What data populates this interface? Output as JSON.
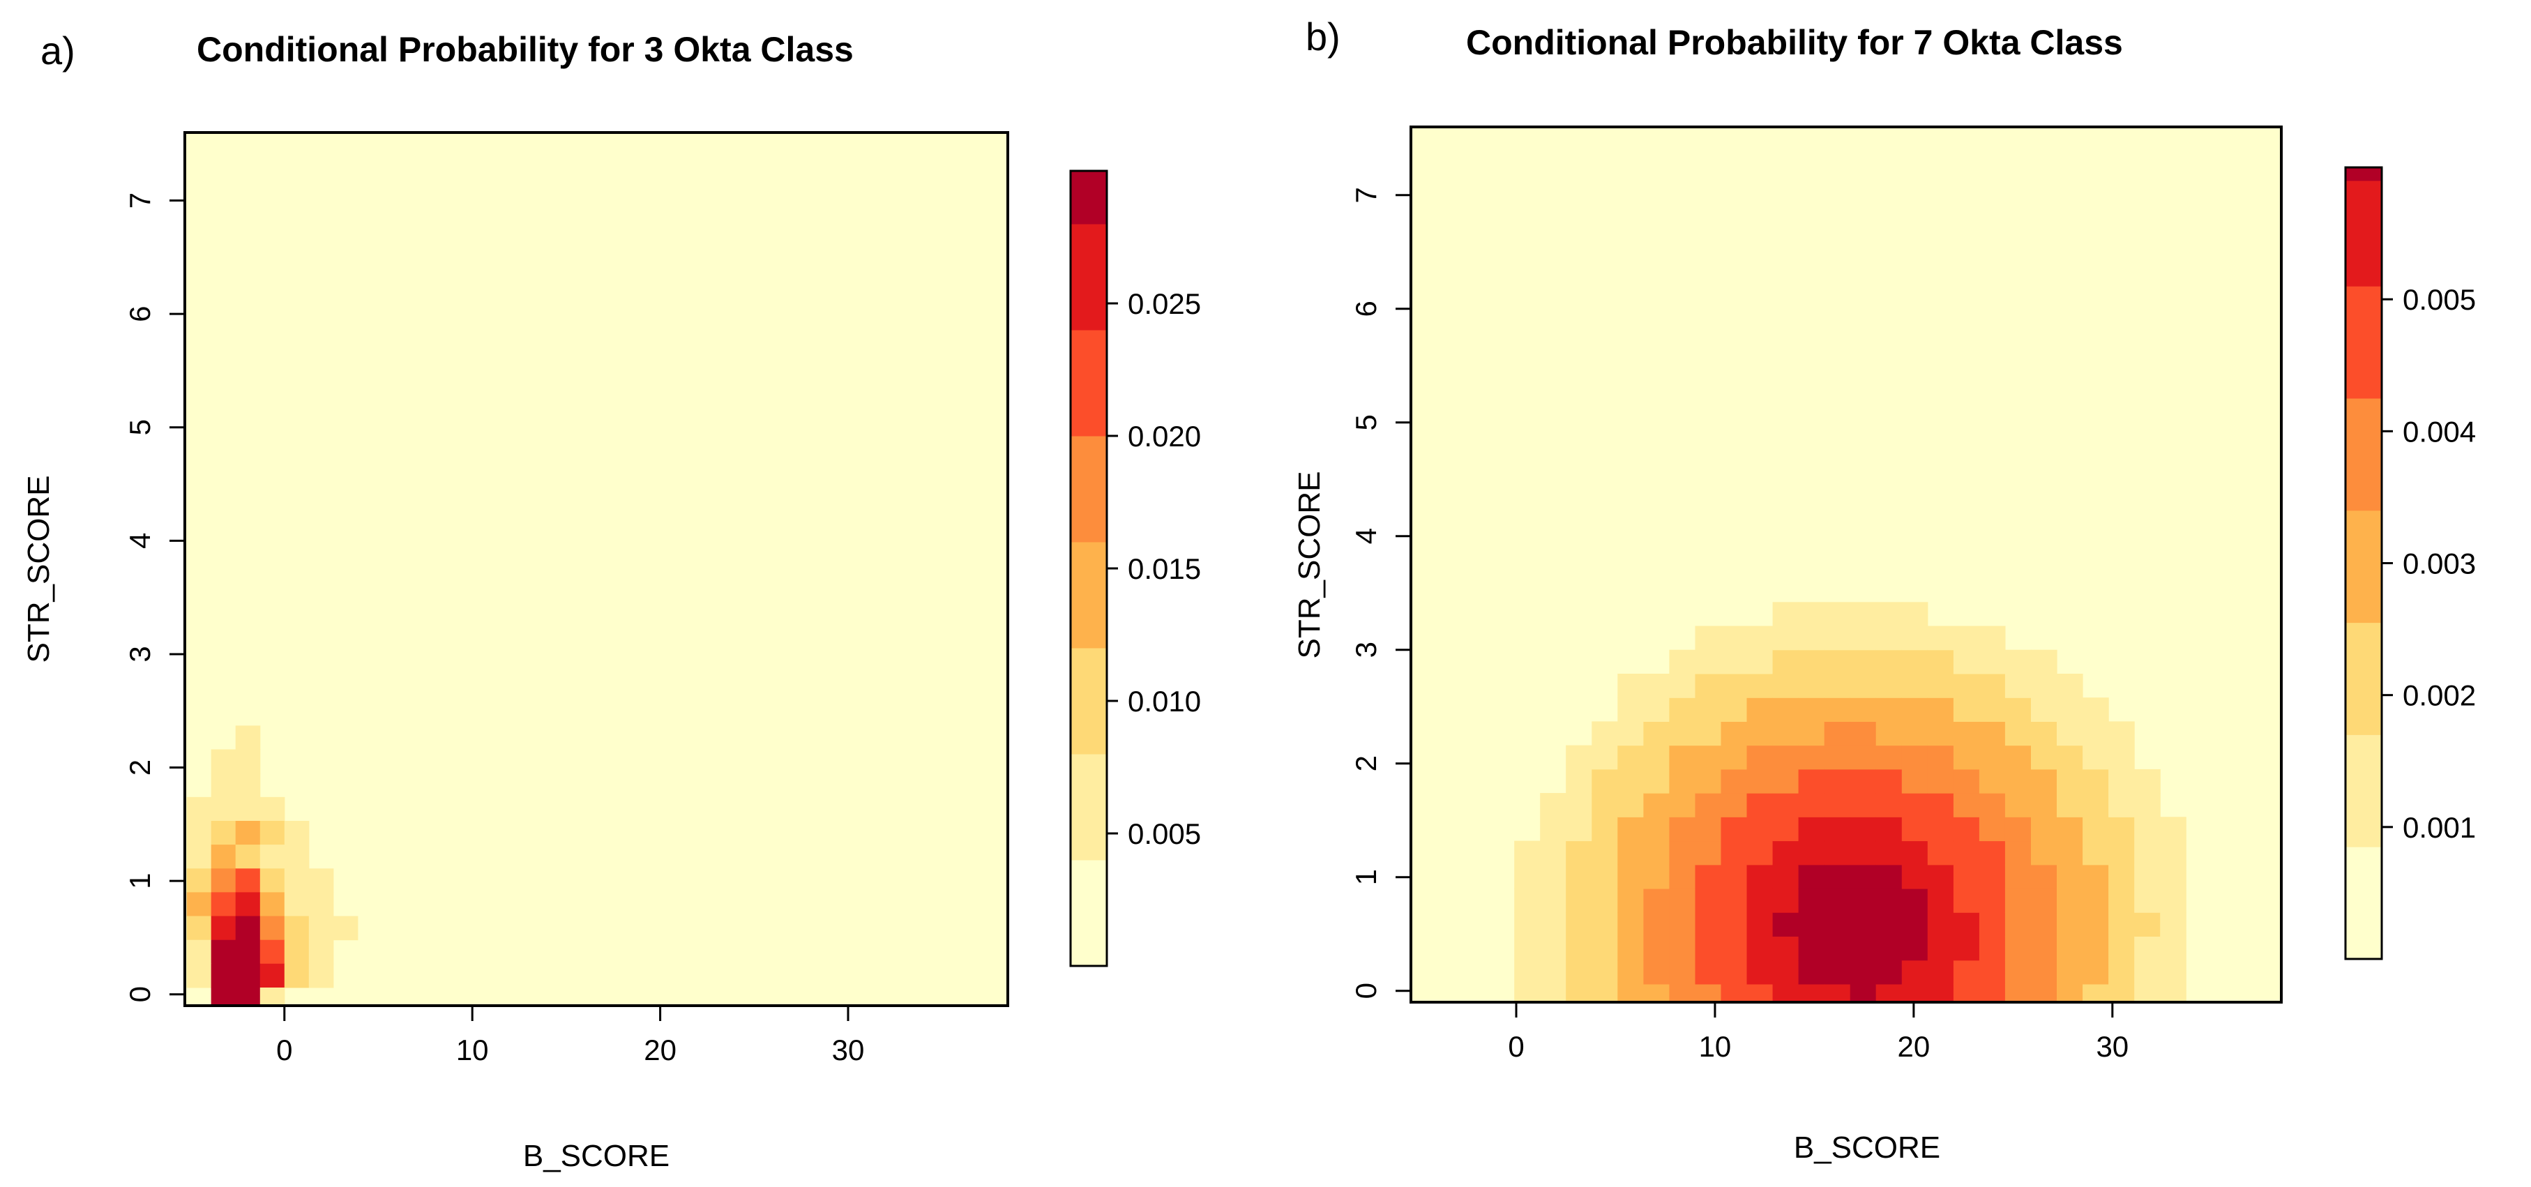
{
  "palette": [
    "#ffffcc",
    "#ffeda0",
    "#fed976",
    "#feb24c",
    "#fd8d3c",
    "#fc4e2a",
    "#e31a1c",
    "#b10026"
  ],
  "chart_data": [
    {
      "type": "heatmap",
      "panel_label": "a)",
      "title": "Conditional Probability for 3 Okta Class",
      "xlabel": "B_SCORE",
      "ylabel": "STR_SCORE",
      "xlim": [
        -5.3,
        38.5
      ],
      "ylim": [
        -0.1,
        7.6
      ],
      "x_ticks": [
        0,
        10,
        20,
        30
      ],
      "y_ticks": [
        0,
        1,
        2,
        3,
        4,
        5,
        6,
        7
      ],
      "cell": {
        "dx": 1.3,
        "dy": 0.21
      },
      "levels": [
        0,
        0.004,
        0.008,
        0.012,
        0.016,
        0.02,
        0.024,
        0.028,
        0.03
      ],
      "colorbar_ticks": [
        0.005,
        0.01,
        0.015,
        0.02,
        0.025
      ],
      "colorbar_tick_labels": [
        "0.005",
        "0.010",
        "0.015",
        "0.020",
        "0.025"
      ],
      "hot_cells": [
        [
          -3.9,
          1.95,
          1
        ],
        [
          -3.9,
          1.74,
          1
        ],
        [
          -2.6,
          2.16,
          1
        ],
        [
          -2.6,
          1.95,
          1
        ],
        [
          -2.6,
          1.74,
          1
        ],
        [
          -5.2,
          1.53,
          1
        ],
        [
          -3.9,
          1.53,
          1
        ],
        [
          -2.6,
          1.53,
          1
        ],
        [
          -1.3,
          1.53,
          1
        ],
        [
          -5.2,
          1.32,
          1
        ],
        [
          -3.9,
          1.32,
          2
        ],
        [
          -2.6,
          1.32,
          3
        ],
        [
          -1.3,
          1.32,
          2
        ],
        [
          0.0,
          1.32,
          1
        ],
        [
          -5.2,
          1.11,
          1
        ],
        [
          -3.9,
          1.11,
          3
        ],
        [
          -2.6,
          1.11,
          2
        ],
        [
          -1.3,
          1.11,
          1
        ],
        [
          0.0,
          1.11,
          1
        ],
        [
          -5.2,
          0.9,
          2
        ],
        [
          -3.9,
          0.9,
          4
        ],
        [
          -2.6,
          0.9,
          5
        ],
        [
          -1.3,
          0.9,
          2
        ],
        [
          0.0,
          0.9,
          1
        ],
        [
          1.3,
          0.9,
          1
        ],
        [
          -5.2,
          0.69,
          3
        ],
        [
          -3.9,
          0.69,
          5
        ],
        [
          -2.6,
          0.69,
          6
        ],
        [
          -1.3,
          0.69,
          3
        ],
        [
          0.0,
          0.69,
          1
        ],
        [
          1.3,
          0.69,
          1
        ],
        [
          -5.2,
          0.48,
          2
        ],
        [
          -3.9,
          0.48,
          6
        ],
        [
          -2.6,
          0.48,
          7
        ],
        [
          -1.3,
          0.48,
          4
        ],
        [
          0.0,
          0.48,
          2
        ],
        [
          1.3,
          0.48,
          1
        ],
        [
          2.6,
          0.48,
          1
        ],
        [
          -5.2,
          0.27,
          1
        ],
        [
          -3.9,
          0.27,
          7
        ],
        [
          -2.6,
          0.27,
          7
        ],
        [
          -1.3,
          0.27,
          5
        ],
        [
          0.0,
          0.27,
          2
        ],
        [
          1.3,
          0.27,
          1
        ],
        [
          -5.2,
          0.06,
          1
        ],
        [
          -3.9,
          0.06,
          7
        ],
        [
          -2.6,
          0.06,
          7
        ],
        [
          -1.3,
          0.06,
          6
        ],
        [
          0.0,
          0.06,
          2
        ],
        [
          1.3,
          0.06,
          1
        ],
        [
          -3.9,
          -0.15,
          7
        ],
        [
          -2.6,
          -0.15,
          7
        ],
        [
          -1.3,
          -0.15,
          1
        ]
      ]
    },
    {
      "type": "heatmap",
      "panel_label": "b)",
      "title": "Conditional Probability for 7 Okta Class",
      "xlabel": "B_SCORE",
      "ylabel": "STR_SCORE",
      "xlim": [
        -5.3,
        38.5
      ],
      "ylim": [
        -0.1,
        7.6
      ],
      "x_ticks": [
        0,
        10,
        20,
        30
      ],
      "y_ticks": [
        0,
        1,
        2,
        3,
        4,
        5,
        6,
        7
      ],
      "cell": {
        "dx": 1.3,
        "dy": 0.21
      },
      "levels": [
        0,
        0.00085,
        0.0017,
        0.00255,
        0.0034,
        0.00425,
        0.0051,
        0.0059,
        0.006
      ],
      "colorbar_ticks": [
        0.001,
        0.002,
        0.003,
        0.004,
        0.005
      ],
      "colorbar_tick_labels": [
        "0.001",
        "0.002",
        "0.003",
        "0.004",
        "0.005"
      ],
      "ellipse": {
        "cx": 17.0,
        "cy": 0.55,
        "rx": 17.0,
        "ry": 2.85,
        "peak_level": 7
      }
    }
  ]
}
